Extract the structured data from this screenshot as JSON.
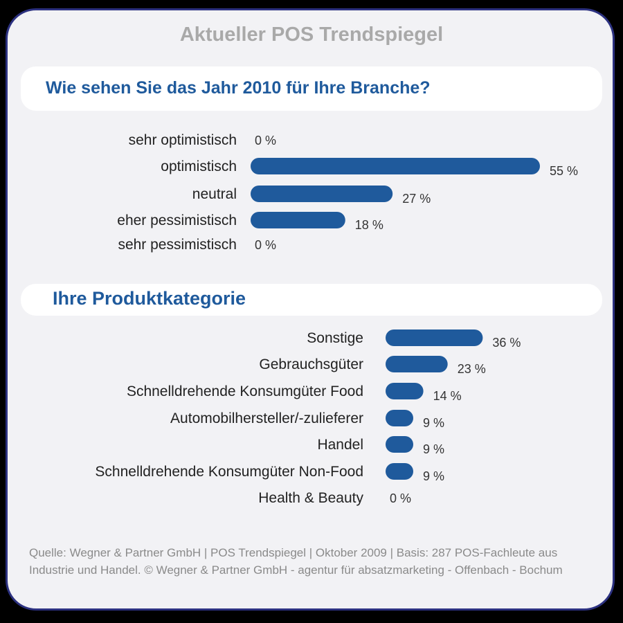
{
  "title": "Aktueller POS Trendspiegel",
  "footer": "Quelle: Wegner & Partner GmbH | POS Trendspiegel | Oktober 2009 | Basis: 287 POS-Fachleute aus Industrie und Handel. © Wegner & Partner GmbH - agentur für absatzmarketing - Offenbach - Bochum",
  "colors": {
    "bar": "#1f5a9c",
    "heading": "#1f5a9c",
    "border": "#2c3180"
  },
  "chart_data": [
    {
      "type": "bar",
      "orientation": "horizontal",
      "title": "Wie sehen Sie das Jahr 2010 für Ihre Branche?",
      "categories": [
        "sehr optimistisch",
        "optimistisch",
        "neutral",
        "eher pessimistisch",
        "sehr pessimistisch"
      ],
      "values": [
        0,
        55,
        27,
        18,
        0
      ],
      "value_labels": [
        "0 %",
        "55 %",
        "27 %",
        "18 %",
        "0 %"
      ],
      "unit": "%"
    },
    {
      "type": "bar",
      "orientation": "horizontal",
      "title": "Ihre Produktkategorie",
      "categories": [
        "Sonstige",
        "Gebrauchsgüter",
        "Schnelldrehende Konsumgüter Food",
        "Automobilhersteller/-zulieferer",
        "Handel",
        "Schnelldrehende Konsumgüter Non-Food",
        "Health & Beauty"
      ],
      "values": [
        36,
        23,
        14,
        9,
        9,
        9,
        0
      ],
      "value_labels": [
        "36 %",
        "23 %",
        "14 %",
        "9 %",
        "9 %",
        "9 %",
        "0 %"
      ],
      "unit": "%"
    }
  ]
}
